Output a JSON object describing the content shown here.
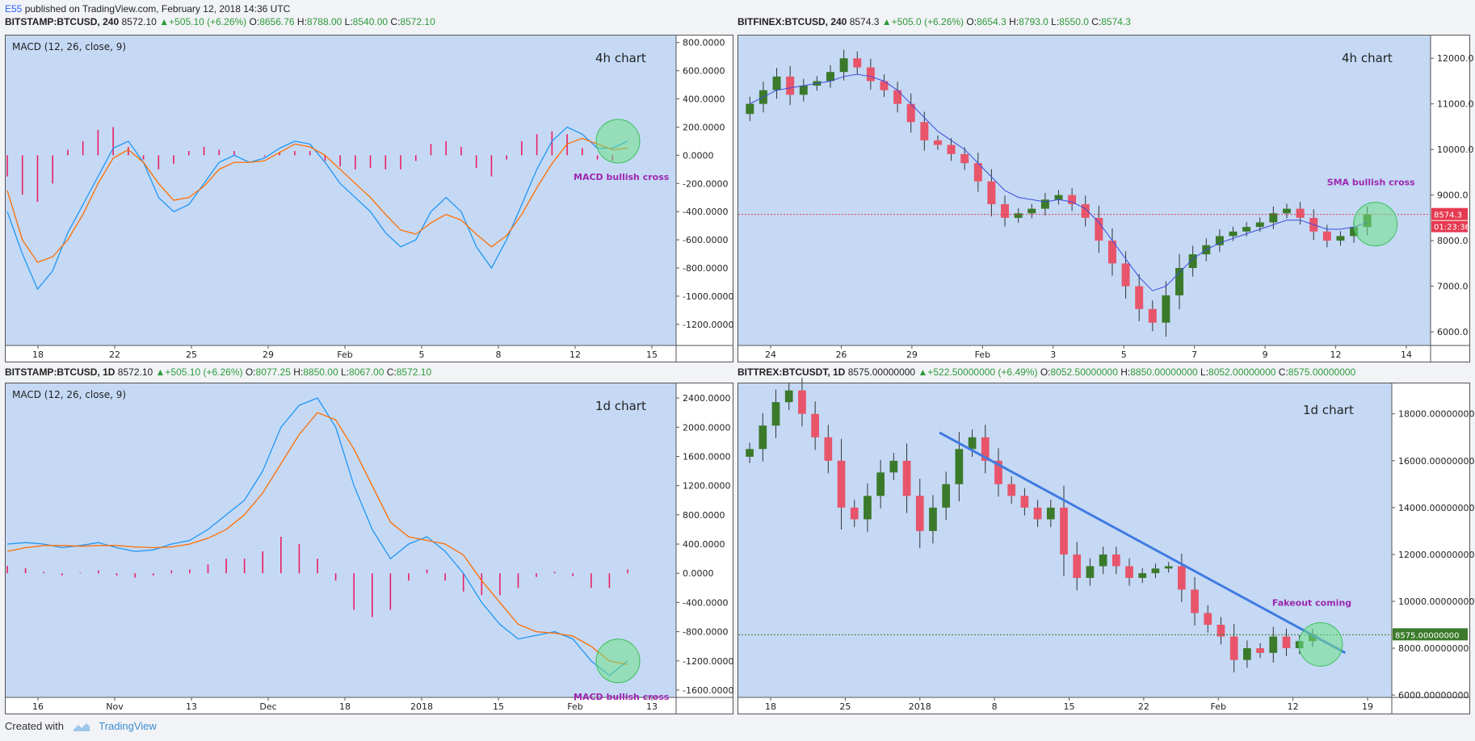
{
  "header": {
    "author": "E55",
    "text": " published on TradingView.com, February 12, 2018 14:36 UTC"
  },
  "footer": {
    "created_with": "Created with",
    "brand": "TradingView"
  },
  "panels": [
    {
      "symbol": "BITSTAMP:BTCUSD, 240",
      "last": "8572.10",
      "change": "+505.10 (+6.26%)",
      "o": "8656.76",
      "h": "8788.00",
      "l": "8540.00",
      "c": "8572.10",
      "indicator": "MACD (12, 26, close, 9)",
      "timeframe_note": "4h chart",
      "annotation": "MACD bullish cross"
    },
    {
      "symbol": "BITFINEX:BTCUSD, 240",
      "last": "8574.3",
      "change": "+505.0 (+6.26%)",
      "o": "8654.3",
      "h": "8793.0",
      "l": "8550.0",
      "c": "8574.3",
      "timeframe_note": "4h chart",
      "annotation": "SMA bullish cross",
      "price_label": "8574.3",
      "countdown": "01:23:36"
    },
    {
      "symbol": "BITSTAMP:BTCUSD, 1D",
      "last": "8572.10",
      "change": "+505.10 (+6.26%)",
      "o": "8077.25",
      "h": "8850.00",
      "l": "8067.00",
      "c": "8572.10",
      "indicator": "MACD (12, 26, close, 9)",
      "timeframe_note": "1d chart",
      "annotation": "MACD bullish cross"
    },
    {
      "symbol": "BITTREX:BTCUSDT, 1D",
      "last": "8575.00000000",
      "change": "+522.50000000 (+6.49%)",
      "o": "8052.50000000",
      "h": "8850.00000000",
      "l": "8052.00000000",
      "c": "8575.00000000",
      "timeframe_note": "1d chart",
      "annotation": "Fakeout coming",
      "price_label": "8575.00000000"
    }
  ],
  "labels": {
    "o": "O:",
    "h": "H:",
    "l": "L:",
    "c": "C:"
  },
  "chart_data": [
    {
      "type": "line",
      "title": "MACD (12, 26, close, 9)",
      "x_ticks": [
        "18",
        "22",
        "25",
        "29",
        "Feb",
        "5",
        "8",
        "12",
        "15"
      ],
      "y_ticks": [
        "800.0000",
        "600.0000",
        "400.0000",
        "200.0000",
        "0.0000",
        "-200.0000",
        "-400.0000",
        "-600.0000",
        "-800.0000",
        "-1000.0000",
        "-1200.0000"
      ],
      "ylim": [
        -1350,
        850
      ],
      "series": [
        {
          "name": "MACD",
          "color": "#2196f3",
          "values": [
            -400,
            -700,
            -950,
            -820,
            -550,
            -350,
            -150,
            50,
            100,
            -50,
            -300,
            -400,
            -350,
            -200,
            -50,
            0,
            -50,
            -20,
            50,
            100,
            80,
            -50,
            -200,
            -300,
            -400,
            -550,
            -650,
            -600,
            -400,
            -300,
            -400,
            -650,
            -800,
            -600,
            -350,
            -100,
            100,
            200,
            150,
            50,
            50,
            100
          ]
        },
        {
          "name": "Signal",
          "color": "#ff6d00",
          "values": [
            -250,
            -600,
            -760,
            -720,
            -600,
            -420,
            -200,
            -20,
            40,
            -50,
            -200,
            -320,
            -300,
            -220,
            -100,
            -50,
            -50,
            -40,
            20,
            80,
            60,
            0,
            -100,
            -200,
            -300,
            -420,
            -530,
            -560,
            -480,
            -420,
            -460,
            -560,
            -650,
            -570,
            -420,
            -230,
            -60,
            80,
            120,
            80,
            40,
            50
          ]
        },
        {
          "name": "Histogram",
          "color": "#e91e63",
          "values": [
            -150,
            -280,
            -330,
            -200,
            40,
            100,
            180,
            200,
            60,
            -30,
            -100,
            -60,
            30,
            60,
            40,
            30,
            0,
            -10,
            20,
            30,
            30,
            -40,
            -80,
            -100,
            -90,
            -100,
            -100,
            -40,
            80,
            100,
            60,
            -90,
            -150,
            -30,
            100,
            150,
            170,
            150,
            50,
            -30,
            -40,
            0
          ]
        }
      ]
    },
    {
      "type": "candlestick",
      "x_ticks": [
        "24",
        "26",
        "29",
        "Feb",
        "3",
        "5",
        "7",
        "9",
        "12",
        "14"
      ],
      "y_ticks": [
        "12000.0",
        "11000.0",
        "10000.0",
        "9000.0",
        "8000.0",
        "7000.0",
        "6000.0"
      ],
      "ylim": [
        5700,
        12500
      ],
      "close": [
        11000,
        11300,
        11600,
        11200,
        11400,
        11500,
        11700,
        12000,
        11800,
        11500,
        11300,
        11000,
        10600,
        10200,
        10100,
        9900,
        9700,
        9300,
        8800,
        8500,
        8600,
        8700,
        8900,
        9000,
        8800,
        8500,
        8000,
        7500,
        7000,
        6500,
        6200,
        6800,
        7400,
        7700,
        7900,
        8100,
        8200,
        8300,
        8400,
        8600,
        8700,
        8500,
        8200,
        8000,
        8100,
        8300,
        8574
      ],
      "sma": [
        11000,
        11150,
        11300,
        11350,
        11400,
        11450,
        11500,
        11600,
        11650,
        11600,
        11500,
        11300,
        11000,
        10700,
        10400,
        10200,
        10000,
        9700,
        9400,
        9100,
        8950,
        8900,
        8850,
        8900,
        8850,
        8700,
        8400,
        8000,
        7600,
        7200,
        6900,
        7000,
        7300,
        7600,
        7800,
        7950,
        8050,
        8150,
        8250,
        8350,
        8450,
        8450,
        8350,
        8250,
        8250,
        8300,
        8400
      ],
      "last_price": 8574.3
    },
    {
      "type": "line",
      "title": "MACD (12, 26, close, 9)",
      "x_ticks": [
        "16",
        "Nov",
        "13",
        "Dec",
        "18",
        "2018",
        "15",
        "Feb",
        "13"
      ],
      "y_ticks": [
        "2400.0000",
        "2000.0000",
        "1600.0000",
        "1200.0000",
        "800.0000",
        "400.0000",
        "0.0000",
        "-400.0000",
        "-800.0000",
        "-1200.0000",
        "-1600.0000"
      ],
      "ylim": [
        -1700,
        2600
      ],
      "series": [
        {
          "name": "MACD",
          "color": "#2196f3",
          "values": [
            400,
            420,
            400,
            350,
            380,
            420,
            350,
            300,
            320,
            400,
            450,
            600,
            800,
            1000,
            1400,
            2000,
            2300,
            2400,
            2000,
            1200,
            600,
            200,
            400,
            500,
            300,
            0,
            -400,
            -700,
            -900,
            -850,
            -800,
            -900,
            -1200,
            -1400,
            -1200
          ]
        },
        {
          "name": "Signal",
          "color": "#ff6d00",
          "values": [
            300,
            350,
            380,
            380,
            370,
            380,
            380,
            360,
            350,
            360,
            400,
            480,
            600,
            800,
            1100,
            1500,
            1900,
            2200,
            2100,
            1700,
            1200,
            700,
            500,
            450,
            400,
            250,
            -100,
            -400,
            -700,
            -800,
            -820,
            -860,
            -1000,
            -1200,
            -1250
          ]
        },
        {
          "name": "Histogram",
          "color": "#e91e63",
          "values": [
            100,
            70,
            20,
            -30,
            10,
            40,
            -30,
            -60,
            -30,
            40,
            50,
            120,
            200,
            200,
            300,
            500,
            400,
            200,
            -100,
            -500,
            -600,
            -500,
            -100,
            50,
            -100,
            -250,
            -300,
            -300,
            -200,
            -50,
            20,
            -40,
            -200,
            -200,
            50
          ]
        }
      ]
    },
    {
      "type": "candlestick",
      "x_ticks": [
        "18",
        "25",
        "2018",
        "8",
        "15",
        "22",
        "Feb",
        "12",
        "19"
      ],
      "y_ticks": [
        "18000.00000000",
        "16000.00000000",
        "14000.00000000",
        "12000.00000000",
        "10000.00000000",
        "8000.00000000",
        "6000.00000000"
      ],
      "ylim": [
        5900,
        19300
      ],
      "close": [
        16500,
        17500,
        18500,
        19000,
        18000,
        17000,
        16000,
        14000,
        13500,
        14500,
        15500,
        16000,
        14500,
        13000,
        14000,
        15000,
        16500,
        17000,
        16000,
        15000,
        14500,
        14000,
        13500,
        14000,
        12000,
        11000,
        11500,
        12000,
        11500,
        11000,
        11200,
        11400,
        11500,
        10500,
        9500,
        9000,
        8500,
        7500,
        8000,
        7800,
        8500,
        8000,
        8300,
        8575
      ],
      "trendline": {
        "from": 17200,
        "to": 7800
      },
      "last_price": 8575
    }
  ]
}
